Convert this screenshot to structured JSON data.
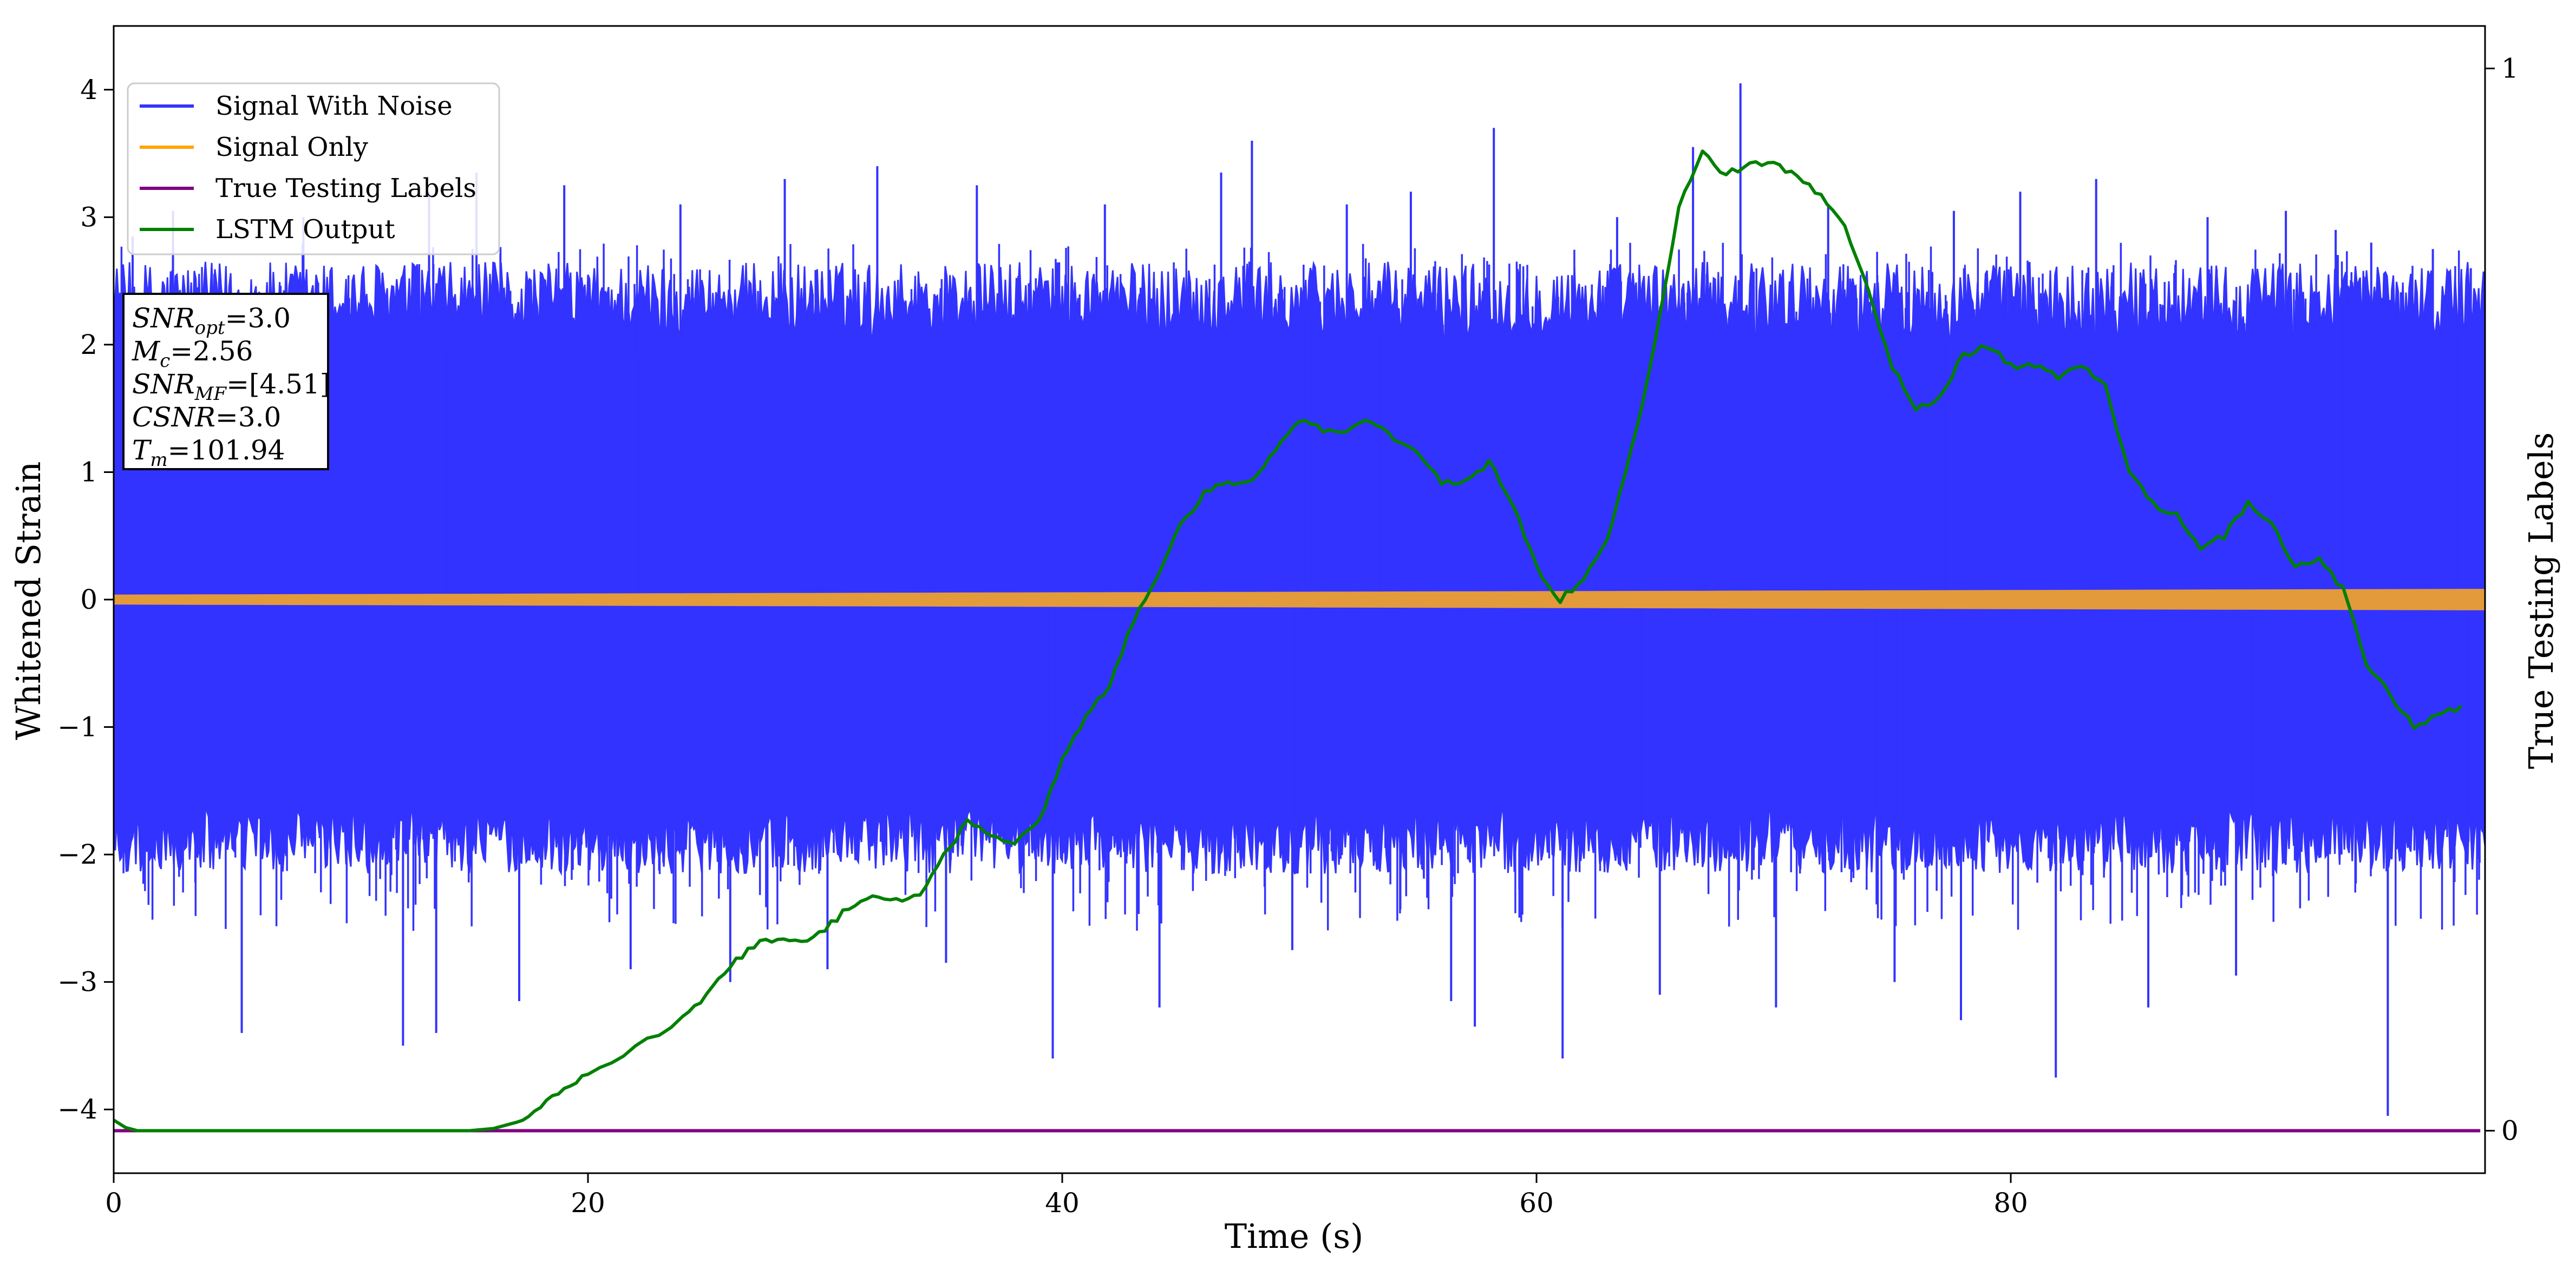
{
  "chart_data": {
    "type": "line",
    "xlabel": "Time (s)",
    "ylabel": "Whitened Strain",
    "y2label": "True Testing Labels",
    "xlim": [
      0,
      100
    ],
    "ylim": [
      -4.5,
      4.5
    ],
    "y2lim": [
      -0.04,
      1.04
    ],
    "x_ticks": [
      0,
      20,
      40,
      60,
      80
    ],
    "y_ticks": [
      -4,
      -3,
      -2,
      -1,
      0,
      1,
      2,
      3,
      4
    ],
    "y2_ticks": [
      0,
      1
    ],
    "grid": false,
    "legend_position": "top-left",
    "annotation": [
      {
        "main": "SNR",
        "sub": "opt",
        "rest": "=3.0"
      },
      {
        "main": "M",
        "sub": "c",
        "rest": "=2.56"
      },
      {
        "main": "SNR",
        "sub": "MF",
        "rest": "=[4.51]"
      },
      {
        "main": "CSNR",
        "sub": "",
        "rest": "=3.0"
      },
      {
        "main": "T",
        "sub": "m",
        "rest": "=101.94"
      }
    ],
    "series": [
      {
        "name": "Signal With Noise",
        "color": "#3333ff",
        "axis": "left",
        "band": {
          "x": [
            0,
            100
          ],
          "typical_low": -1.5,
          "typical_high": 1.9,
          "min": -4.05,
          "max": 4.05
        },
        "peaks": [
          {
            "x": 0.8,
            "y": 2.85
          },
          {
            "x": 2.5,
            "y": 3.05
          },
          {
            "x": 5.4,
            "y": -3.4
          },
          {
            "x": 8.0,
            "y": 3.0
          },
          {
            "x": 12.2,
            "y": -3.5
          },
          {
            "x": 13.3,
            "y": 3.2
          },
          {
            "x": 13.6,
            "y": -3.4
          },
          {
            "x": 15.3,
            "y": 3.35
          },
          {
            "x": 17.1,
            "y": -3.15
          },
          {
            "x": 19.0,
            "y": 3.25
          },
          {
            "x": 21.8,
            "y": -2.9
          },
          {
            "x": 23.9,
            "y": 3.1
          },
          {
            "x": 26.0,
            "y": -3.0
          },
          {
            "x": 28.3,
            "y": 3.3
          },
          {
            "x": 30.1,
            "y": -2.9
          },
          {
            "x": 32.2,
            "y": 3.4
          },
          {
            "x": 35.1,
            "y": -2.85
          },
          {
            "x": 36.4,
            "y": 3.25
          },
          {
            "x": 39.6,
            "y": -3.6
          },
          {
            "x": 41.8,
            "y": 3.1
          },
          {
            "x": 44.1,
            "y": -3.2
          },
          {
            "x": 46.7,
            "y": 3.35
          },
          {
            "x": 48.0,
            "y": 3.6
          },
          {
            "x": 49.7,
            "y": -2.75
          },
          {
            "x": 52.0,
            "y": 3.1
          },
          {
            "x": 54.7,
            "y": 3.2
          },
          {
            "x": 56.4,
            "y": -3.15
          },
          {
            "x": 57.4,
            "y": -3.35
          },
          {
            "x": 58.2,
            "y": 3.7
          },
          {
            "x": 61.1,
            "y": -3.6
          },
          {
            "x": 63.4,
            "y": 3.0
          },
          {
            "x": 65.2,
            "y": -3.1
          },
          {
            "x": 66.6,
            "y": 3.55
          },
          {
            "x": 68.6,
            "y": 4.05
          },
          {
            "x": 70.1,
            "y": -3.2
          },
          {
            "x": 72.3,
            "y": 3.1
          },
          {
            "x": 75.1,
            "y": -3.0
          },
          {
            "x": 77.6,
            "y": 3.05
          },
          {
            "x": 77.9,
            "y": -3.3
          },
          {
            "x": 80.4,
            "y": 3.2
          },
          {
            "x": 81.9,
            "y": -3.75
          },
          {
            "x": 83.6,
            "y": 3.3
          },
          {
            "x": 85.8,
            "y": -3.2
          },
          {
            "x": 88.3,
            "y": 3.0
          },
          {
            "x": 89.5,
            "y": -2.95
          },
          {
            "x": 91.6,
            "y": 3.05
          },
          {
            "x": 93.7,
            "y": 2.9
          },
          {
            "x": 95.2,
            "y": 2.8
          },
          {
            "x": 95.9,
            "y": -4.05
          },
          {
            "x": 97.8,
            "y": 2.75
          },
          {
            "x": 99.4,
            "y": 2.6
          }
        ]
      },
      {
        "name": "Signal Only",
        "color": "#ffa500",
        "axis": "left",
        "band": {
          "x": [
            0,
            100
          ],
          "amplitude_start": 0.035,
          "amplitude_end": 0.08
        }
      },
      {
        "name": "True Testing Labels",
        "color": "#800080",
        "axis": "right",
        "x": [
          0,
          99.8
        ],
        "y": [
          0,
          0
        ]
      },
      {
        "name": "LSTM Output",
        "color": "#008000",
        "axis": "right",
        "x": [
          0,
          0.5,
          1,
          5,
          10,
          15,
          16,
          17,
          18,
          19,
          20,
          22,
          24,
          25,
          26,
          27,
          28,
          29,
          30,
          31,
          32,
          33,
          34,
          35,
          36,
          37,
          38,
          39,
          40,
          41,
          42,
          43,
          44,
          45,
          46,
          47,
          48,
          49,
          50,
          51,
          52,
          53,
          54,
          55,
          56,
          57,
          58,
          59,
          60,
          61,
          62,
          63,
          64,
          65,
          66,
          67,
          68,
          69,
          70,
          71,
          72,
          73,
          74,
          75,
          76,
          77,
          78,
          79,
          80,
          81,
          82,
          83,
          84,
          85,
          86,
          87,
          88,
          89,
          90,
          91,
          92,
          93,
          94,
          95,
          96,
          97,
          98,
          99
        ],
        "y": [
          0.01,
          0.003,
          0.0,
          0.0,
          0.0,
          0.0,
          0.002,
          0.008,
          0.024,
          0.04,
          0.052,
          0.078,
          0.105,
          0.128,
          0.155,
          0.175,
          0.18,
          0.178,
          0.19,
          0.21,
          0.22,
          0.218,
          0.22,
          0.26,
          0.29,
          0.28,
          0.27,
          0.29,
          0.35,
          0.39,
          0.42,
          0.48,
          0.52,
          0.57,
          0.6,
          0.61,
          0.61,
          0.64,
          0.67,
          0.66,
          0.66,
          0.67,
          0.65,
          0.64,
          0.61,
          0.61,
          0.63,
          0.59,
          0.53,
          0.5,
          0.52,
          0.56,
          0.64,
          0.74,
          0.87,
          0.92,
          0.9,
          0.91,
          0.91,
          0.9,
          0.88,
          0.85,
          0.79,
          0.72,
          0.68,
          0.69,
          0.73,
          0.74,
          0.72,
          0.72,
          0.71,
          0.72,
          0.7,
          0.62,
          0.59,
          0.58,
          0.55,
          0.56,
          0.59,
          0.57,
          0.53,
          0.54,
          0.51,
          0.44,
          0.41,
          0.38,
          0.39,
          0.4
        ]
      }
    ]
  }
}
